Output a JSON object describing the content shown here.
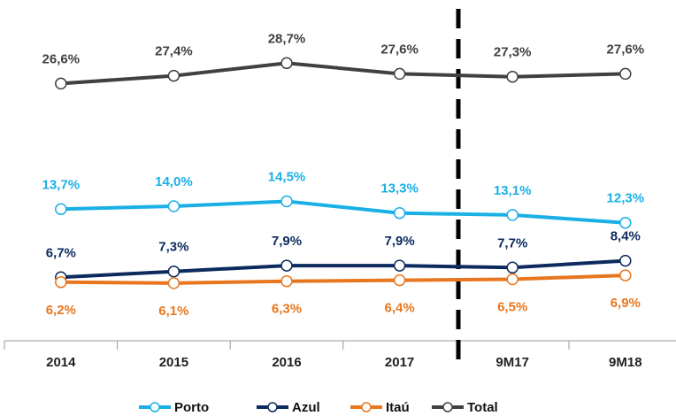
{
  "chart_data": {
    "type": "line",
    "categories": [
      "2014",
      "2015",
      "2016",
      "2017",
      "9M17",
      "9M18"
    ],
    "ylim": [
      0,
      35
    ],
    "series": [
      {
        "name": "Porto",
        "color": "#1ab0e6",
        "values": [
          13.7,
          14.0,
          14.5,
          13.3,
          13.1,
          12.3
        ],
        "value_labels": [
          "13,7%",
          "14,0%",
          "14,5%",
          "13,3%",
          "13,1%",
          "12,3%"
        ]
      },
      {
        "name": "Azul",
        "color": "#0c2a5e",
        "values": [
          6.7,
          7.3,
          7.9,
          7.9,
          7.7,
          8.4
        ],
        "value_labels": [
          "6,7%",
          "7,3%",
          "7,9%",
          "7,9%",
          "7,7%",
          "8,4%"
        ]
      },
      {
        "name": "Itaú",
        "color": "#e8761e",
        "values": [
          6.2,
          6.1,
          6.3,
          6.4,
          6.5,
          6.9
        ],
        "value_labels": [
          "6,2%",
          "6,1%",
          "6,3%",
          "6,4%",
          "6,5%",
          "6,9%"
        ]
      },
      {
        "name": "Total",
        "color": "#404040",
        "values": [
          26.6,
          27.4,
          28.7,
          27.6,
          27.3,
          27.6
        ],
        "value_labels": [
          "26,6%",
          "27,4%",
          "28,7%",
          "27,6%",
          "27,3%",
          "27,6%"
        ]
      }
    ],
    "legend": "bottom"
  }
}
